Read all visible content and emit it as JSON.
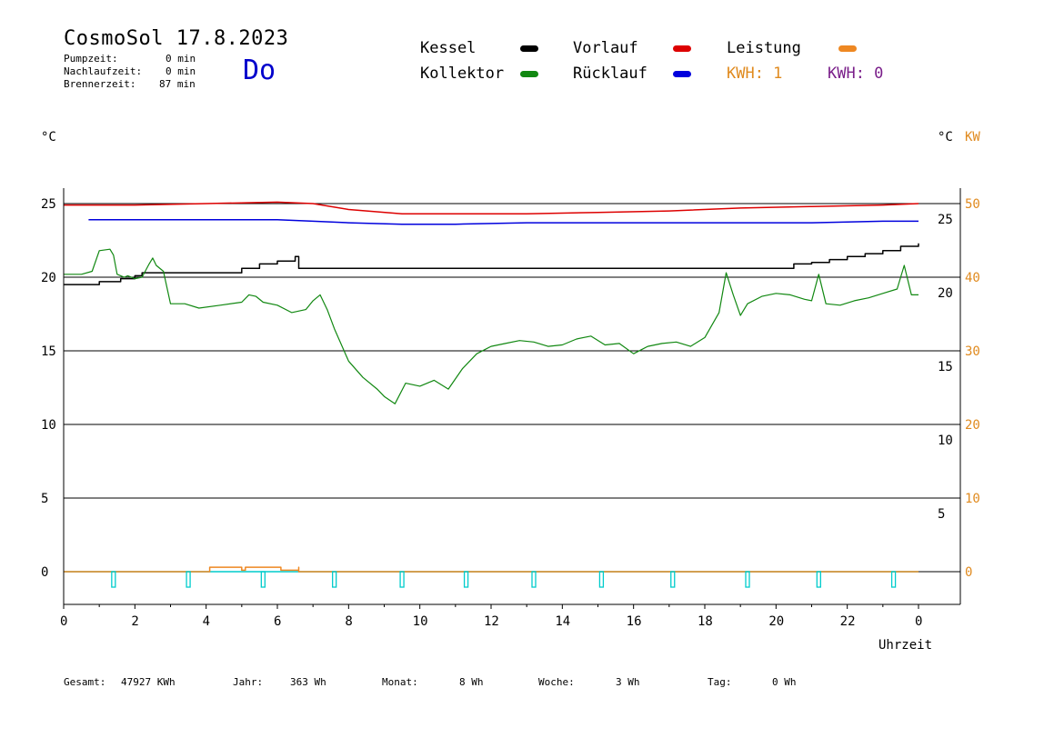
{
  "header": {
    "title": "CosmoSol 17.8.2023",
    "day": "Do",
    "stats": [
      {
        "label": "Pumpzeit:",
        "value": "0 min"
      },
      {
        "label": "Nachlaufzeit:",
        "value": "0 min"
      },
      {
        "label": "Brennerzeit:",
        "value": "87 min"
      }
    ]
  },
  "legend": {
    "items": [
      {
        "label": "Kessel",
        "color": "#000000"
      },
      {
        "label": "Vorlauf",
        "color": "#dd0000"
      },
      {
        "label": "Leistung",
        "color": "#ee8822"
      },
      {
        "label": "Kollektor",
        "color": "#118811"
      },
      {
        "label": "Rücklauf",
        "color": "#0000dd"
      }
    ],
    "kwh1": "KWH: 1",
    "kwh2": "KWH: 0"
  },
  "axis_units": {
    "left": "°C",
    "right_c": "°C",
    "right_kw": "KW",
    "x": "Uhrzeit"
  },
  "footer": {
    "gesamt_label": "Gesamt:",
    "gesamt_value": "47927 KWh",
    "jahr_label": "Jahr:",
    "jahr_value": "363 Wh",
    "monat_label": "Monat:",
    "monat_value": "8 Wh",
    "woche_label": "Woche:",
    "woche_value": "3 Wh",
    "tag_label": "Tag:",
    "tag_value": "0 Wh"
  },
  "chart_data": {
    "type": "line",
    "xlabel": "Uhrzeit",
    "ylabel": "°C",
    "xlim": [
      0,
      24
    ],
    "ylim": [
      -2,
      26
    ],
    "x_ticks": [
      "0",
      "2",
      "4",
      "6",
      "8",
      "10",
      "12",
      "14",
      "16",
      "18",
      "20",
      "22",
      "0"
    ],
    "y_ticks_left": [
      "0",
      "5",
      "10",
      "15",
      "20",
      "25"
    ],
    "y_ticks_right_c": [
      "5",
      "10",
      "15",
      "20",
      "25"
    ],
    "y_ticks_right_kw": [
      "0",
      "10",
      "20",
      "30",
      "40",
      "50"
    ],
    "grid": true,
    "series": [
      {
        "name": "Vorlauf",
        "color": "#dd0000",
        "x": [
          0,
          2,
          4,
          6,
          7,
          8,
          9.5,
          11,
          13,
          15,
          17,
          19,
          21,
          23,
          24
        ],
        "y": [
          24.9,
          24.9,
          25.0,
          25.1,
          25.0,
          24.6,
          24.3,
          24.3,
          24.3,
          24.4,
          24.5,
          24.7,
          24.8,
          24.9,
          25.0
        ]
      },
      {
        "name": "Rücklauf",
        "color": "#0000dd",
        "x": [
          0.7,
          2,
          4,
          6,
          7,
          8,
          9.5,
          11,
          13,
          15,
          17,
          19,
          21,
          23,
          24
        ],
        "y": [
          23.9,
          23.9,
          23.9,
          23.9,
          23.8,
          23.7,
          23.6,
          23.6,
          23.7,
          23.7,
          23.7,
          23.7,
          23.7,
          23.8,
          23.8
        ]
      },
      {
        "name": "Kessel",
        "color": "#000000",
        "x": [
          0,
          1,
          1.6,
          2,
          2.2,
          4.4,
          5,
          5.5,
          6,
          6.5,
          6.6,
          7,
          10,
          15,
          18,
          20,
          20.5,
          21,
          21.5,
          22,
          22.5,
          23,
          23.5,
          24
        ],
        "y": [
          19.5,
          19.7,
          19.9,
          20.1,
          20.3,
          20.3,
          20.6,
          20.9,
          21.1,
          21.4,
          20.6,
          20.6,
          20.6,
          20.6,
          20.6,
          20.6,
          20.9,
          21.0,
          21.2,
          21.4,
          21.6,
          21.8,
          22.1,
          22.3
        ]
      },
      {
        "name": "Kollektor",
        "color": "#118811",
        "x": [
          0,
          0.5,
          0.8,
          1,
          1.3,
          1.4,
          1.5,
          1.7,
          1.8,
          2,
          2.2,
          2.4,
          2.5,
          2.6,
          2.8,
          3.0,
          3.4,
          3.8,
          4.4,
          5.0,
          5.2,
          5.4,
          5.6,
          6.0,
          6.4,
          6.8,
          7.0,
          7.2,
          7.4,
          7.6,
          8.0,
          8.4,
          8.8,
          9.0,
          9.3,
          9.6,
          10.0,
          10.4,
          10.8,
          11.2,
          11.6,
          12.0,
          12.4,
          12.8,
          13.2,
          13.6,
          14.0,
          14.4,
          14.8,
          15.2,
          15.6,
          16.0,
          16.4,
          16.8,
          17.2,
          17.6,
          18.0,
          18.4,
          18.6,
          18.8,
          19.0,
          19.2,
          19.6,
          20.0,
          20.4,
          20.8,
          21.0,
          21.2,
          21.4,
          21.8,
          22.2,
          22.6,
          23.0,
          23.4,
          23.6,
          23.8,
          24.0
        ],
        "y": [
          20.2,
          20.2,
          20.4,
          21.8,
          21.9,
          21.5,
          20.2,
          20.0,
          20.1,
          19.9,
          20.0,
          20.9,
          21.3,
          20.8,
          20.4,
          18.2,
          18.2,
          17.9,
          18.1,
          18.3,
          18.8,
          18.7,
          18.3,
          18.1,
          17.6,
          17.8,
          18.4,
          18.8,
          17.8,
          16.5,
          14.3,
          13.2,
          12.4,
          11.9,
          11.4,
          12.8,
          12.6,
          13.0,
          12.4,
          13.8,
          14.8,
          15.3,
          15.5,
          15.7,
          15.6,
          15.3,
          15.4,
          15.8,
          16.0,
          15.4,
          15.5,
          14.8,
          15.3,
          15.5,
          15.6,
          15.3,
          15.9,
          17.6,
          20.3,
          18.8,
          17.4,
          18.2,
          18.7,
          18.9,
          18.8,
          18.5,
          18.4,
          20.2,
          18.2,
          18.1,
          18.4,
          18.6,
          18.9,
          19.2,
          20.8,
          18.8,
          18.8
        ]
      },
      {
        "name": "Leistung",
        "color": "#ee8822",
        "x": [
          0,
          4.1,
          4.1,
          4.9,
          5.0,
          5.1,
          6.0,
          6.1,
          6.6,
          6.6,
          24
        ],
        "y": [
          0,
          0,
          0.3,
          0.3,
          0.1,
          0.3,
          0.3,
          0.1,
          0.3,
          0,
          0
        ]
      },
      {
        "color": "#00cccc",
        "x": [
          1.4,
          3.5,
          5.6,
          7.6,
          9.5,
          11.3,
          13.2,
          15.1,
          17.1,
          19.2,
          21.2,
          23.3
        ],
        "y": [
          0,
          0,
          0,
          0,
          0,
          0,
          0,
          0,
          0,
          0,
          0,
          0
        ]
      }
    ]
  }
}
